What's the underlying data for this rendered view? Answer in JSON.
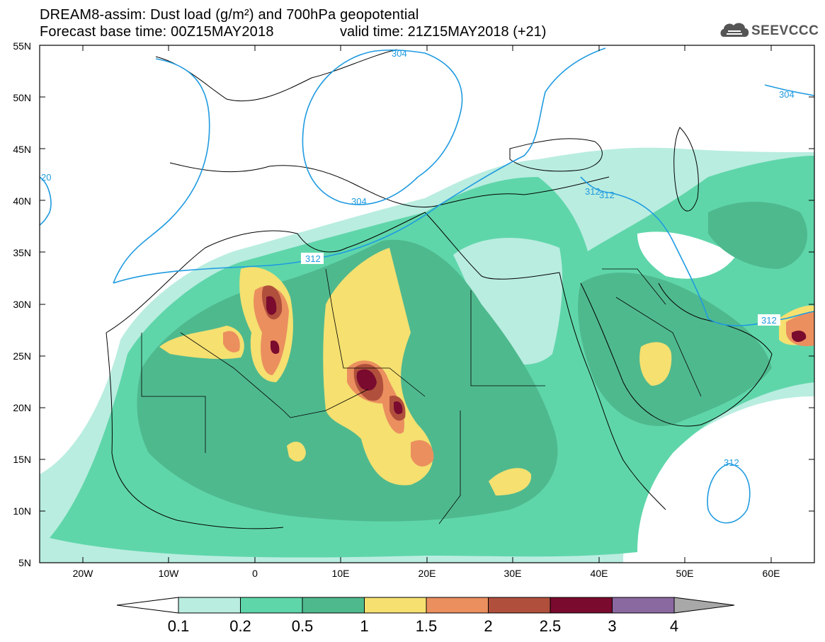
{
  "title": {
    "line1": "DREAM8-assim: Dust load (g/m²) and 700hPa geopotential",
    "line2": "Forecast base time: 00Z15MAY2018",
    "valid": "valid time: 21Z15MAY2018 (+21)"
  },
  "logo": {
    "text": "SEEVCCC",
    "icon": "cloud-icon"
  },
  "axes": {
    "lat_labels": [
      "55N",
      "50N",
      "45N",
      "40N",
      "35N",
      "30N",
      "25N",
      "20N",
      "15N",
      "10N",
      "5N"
    ],
    "lon_labels": [
      "20W",
      "10W",
      "0",
      "10E",
      "20E",
      "30E",
      "40E",
      "50E",
      "60E"
    ],
    "lon_range": [
      -25,
      65
    ],
    "lat_range": [
      5,
      55
    ]
  },
  "contours": {
    "labels": [
      "304",
      "304",
      "304",
      "312",
      "312",
      "312",
      "312",
      "312",
      "20"
    ]
  },
  "colorbar": {
    "levels": [
      "0.1",
      "0.2",
      "0.5",
      "1",
      "1.5",
      "2",
      "2.5",
      "3",
      "4"
    ],
    "colors": [
      "#ffffff",
      "#b9ede0",
      "#5fd6aa",
      "#4fb98e",
      "#f5e070",
      "#eb8f5f",
      "#b0503c",
      "#7a0a2e",
      "#8a68a0",
      "#a8a8a8"
    ]
  }
}
